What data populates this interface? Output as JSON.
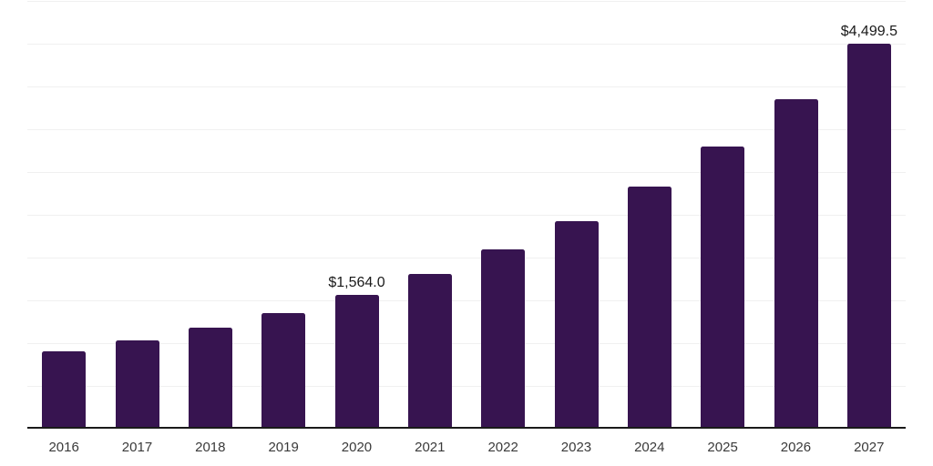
{
  "chart_data": {
    "type": "bar",
    "title": "",
    "xlabel": "",
    "ylabel": "",
    "categories": [
      "2016",
      "2017",
      "2018",
      "2019",
      "2020",
      "2021",
      "2022",
      "2023",
      "2024",
      "2025",
      "2026",
      "2027"
    ],
    "values": [
      900,
      1035,
      1185,
      1355,
      1564.0,
      1810,
      2095,
      2430,
      2825,
      3300,
      3850,
      4499.5
    ],
    "data_labels": [
      "",
      "",
      "",
      "",
      "$1,564.0",
      "",
      "",
      "",
      "",
      "",
      "",
      "$4,499.5"
    ],
    "ylim": [
      0,
      5000
    ],
    "gridline_step": 500,
    "grid": "horizontal",
    "y_tick_labels_visible": false,
    "legend": "none",
    "colors": {
      "bar": "#371450",
      "background": "#ffffff",
      "gridline": "#f0f0f0",
      "axis_line": "#1a1a1a",
      "tick_label": "#3a3a3a",
      "data_label": "#1a1a1a"
    }
  }
}
